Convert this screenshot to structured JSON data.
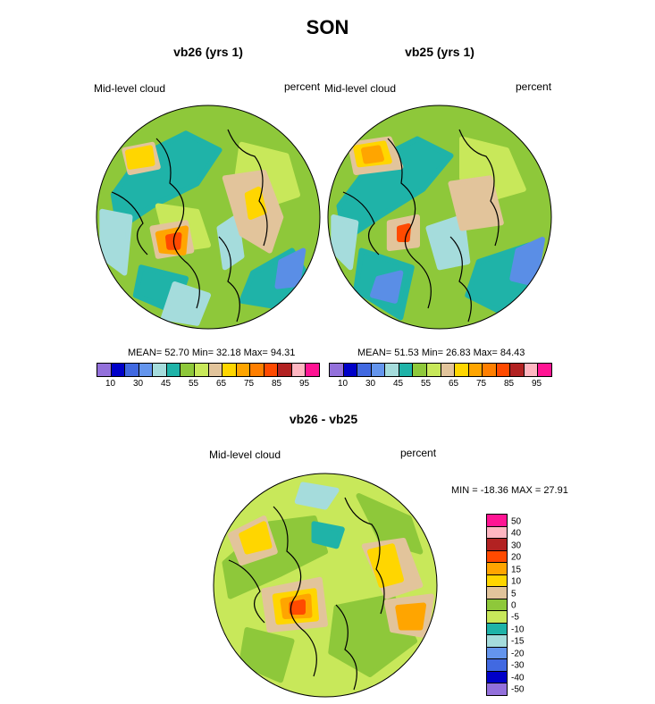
{
  "title": "SON",
  "panels": [
    {
      "subtitle": "vb26 (yrs 1)",
      "left_label": "Mid-level cloud",
      "right_label": "percent",
      "mean_text": "MEAN=  52.70  Min=  32.18  Max=  94.31",
      "base_color": "#8ec83a",
      "blobs": [
        {
          "c": "#1fb3a8",
          "pts": [
            [
              -0.85,
              -0.2
            ],
            [
              -0.6,
              -0.55
            ],
            [
              -0.2,
              -0.75
            ],
            [
              0.1,
              -0.6
            ],
            [
              -0.1,
              -0.3
            ],
            [
              -0.5,
              -0.1
            ],
            [
              -0.8,
              0.1
            ]
          ]
        },
        {
          "c": "#1fb3a8",
          "pts": [
            [
              0.4,
              0.5
            ],
            [
              0.75,
              0.3
            ],
            [
              0.9,
              0.55
            ],
            [
              0.6,
              0.8
            ],
            [
              0.3,
              0.75
            ]
          ]
        },
        {
          "c": "#1fb3a8",
          "pts": [
            [
              -0.6,
              0.45
            ],
            [
              -0.2,
              0.55
            ],
            [
              -0.3,
              0.85
            ],
            [
              -0.65,
              0.7
            ]
          ]
        },
        {
          "c": "#a5dcdc",
          "pts": [
            [
              -0.95,
              -0.05
            ],
            [
              -0.7,
              0.0
            ],
            [
              -0.75,
              0.5
            ],
            [
              -0.95,
              0.35
            ]
          ]
        },
        {
          "c": "#a5dcdc",
          "pts": [
            [
              -0.3,
              0.6
            ],
            [
              0.0,
              0.7
            ],
            [
              -0.1,
              0.95
            ],
            [
              -0.4,
              0.9
            ]
          ]
        },
        {
          "c": "#a5dcdc",
          "pts": [
            [
              0.1,
              0.1
            ],
            [
              0.25,
              0.0
            ],
            [
              0.3,
              0.35
            ],
            [
              0.15,
              0.45
            ]
          ]
        },
        {
          "c": "#5a8ee6",
          "pts": [
            [
              0.65,
              0.4
            ],
            [
              0.85,
              0.3
            ],
            [
              0.8,
              0.6
            ],
            [
              0.62,
              0.62
            ]
          ]
        },
        {
          "c": "#c8e85a",
          "pts": [
            [
              0.3,
              -0.65
            ],
            [
              0.7,
              -0.55
            ],
            [
              0.8,
              -0.2
            ],
            [
              0.5,
              -0.1
            ],
            [
              0.25,
              -0.3
            ]
          ]
        },
        {
          "c": "#c8e85a",
          "pts": [
            [
              -0.45,
              -0.1
            ],
            [
              -0.1,
              -0.05
            ],
            [
              0.0,
              0.25
            ],
            [
              -0.35,
              0.3
            ]
          ]
        },
        {
          "c": "#e2c49b",
          "pts": [
            [
              0.15,
              -0.35
            ],
            [
              0.5,
              -0.4
            ],
            [
              0.65,
              0.0
            ],
            [
              0.55,
              0.3
            ],
            [
              0.3,
              0.15
            ]
          ]
        },
        {
          "c": "#e2c49b",
          "pts": [
            [
              -0.75,
              -0.6
            ],
            [
              -0.5,
              -0.65
            ],
            [
              -0.45,
              -0.45
            ],
            [
              -0.7,
              -0.4
            ]
          ]
        },
        {
          "c": "#e2c49b",
          "pts": [
            [
              -0.5,
              0.1
            ],
            [
              -0.2,
              0.05
            ],
            [
              -0.15,
              0.3
            ],
            [
              -0.45,
              0.35
            ]
          ]
        },
        {
          "c": "#ffd600",
          "pts": [
            [
              -0.72,
              -0.58
            ],
            [
              -0.52,
              -0.62
            ],
            [
              -0.5,
              -0.48
            ],
            [
              -0.7,
              -0.45
            ]
          ]
        },
        {
          "c": "#ffd600",
          "pts": [
            [
              0.35,
              -0.2
            ],
            [
              0.45,
              -0.25
            ],
            [
              0.5,
              -0.05
            ],
            [
              0.38,
              0.0
            ]
          ]
        },
        {
          "c": "#ffa500",
          "pts": [
            [
              -0.45,
              0.15
            ],
            [
              -0.2,
              0.1
            ],
            [
              -0.22,
              0.32
            ],
            [
              -0.42,
              0.3
            ]
          ]
        },
        {
          "c": "#ff4a00",
          "pts": [
            [
              -0.36,
              0.18
            ],
            [
              -0.26,
              0.16
            ],
            [
              -0.27,
              0.27
            ],
            [
              -0.35,
              0.27
            ]
          ]
        }
      ]
    },
    {
      "subtitle": "vb25 (yrs 1)",
      "left_label": "Mid-level cloud",
      "right_label": "percent",
      "mean_text": "MEAN=  51.53  Min=  26.83  Max=  84.43",
      "base_color": "#8ec83a",
      "blobs": [
        {
          "c": "#1fb3a8",
          "pts": [
            [
              -0.9,
              -0.1
            ],
            [
              -0.6,
              -0.5
            ],
            [
              -0.2,
              -0.7
            ],
            [
              0.1,
              -0.55
            ],
            [
              -0.15,
              -0.25
            ],
            [
              -0.55,
              0.0
            ],
            [
              -0.85,
              0.2
            ]
          ]
        },
        {
          "c": "#1fb3a8",
          "pts": [
            [
              0.35,
              0.4
            ],
            [
              0.8,
              0.25
            ],
            [
              0.9,
              0.6
            ],
            [
              0.55,
              0.85
            ],
            [
              0.25,
              0.7
            ]
          ]
        },
        {
          "c": "#1fb3a8",
          "pts": [
            [
              -0.7,
              0.3
            ],
            [
              -0.25,
              0.45
            ],
            [
              -0.35,
              0.9
            ],
            [
              -0.75,
              0.65
            ]
          ]
        },
        {
          "c": "#a5dcdc",
          "pts": [
            [
              -0.95,
              0.0
            ],
            [
              -0.75,
              0.05
            ],
            [
              -0.8,
              0.45
            ],
            [
              -0.95,
              0.3
            ]
          ]
        },
        {
          "c": "#a5dcdc",
          "pts": [
            [
              -0.1,
              0.1
            ],
            [
              0.2,
              0.0
            ],
            [
              0.25,
              0.4
            ],
            [
              0.0,
              0.45
            ]
          ]
        },
        {
          "c": "#5a8ee6",
          "pts": [
            [
              0.7,
              0.3
            ],
            [
              0.92,
              0.2
            ],
            [
              0.85,
              0.6
            ],
            [
              0.65,
              0.55
            ]
          ]
        },
        {
          "c": "#5a8ee6",
          "pts": [
            [
              -0.55,
              0.55
            ],
            [
              -0.35,
              0.5
            ],
            [
              -0.4,
              0.75
            ],
            [
              -0.6,
              0.7
            ]
          ]
        },
        {
          "c": "#c8e85a",
          "pts": [
            [
              0.2,
              -0.7
            ],
            [
              0.6,
              -0.6
            ],
            [
              0.75,
              -0.25
            ],
            [
              0.4,
              -0.15
            ],
            [
              0.2,
              -0.35
            ]
          ]
        },
        {
          "c": "#e2c49b",
          "pts": [
            [
              -0.8,
              -0.65
            ],
            [
              -0.45,
              -0.7
            ],
            [
              -0.35,
              -0.45
            ],
            [
              -0.75,
              -0.4
            ]
          ]
        },
        {
          "c": "#e2c49b",
          "pts": [
            [
              0.1,
              -0.3
            ],
            [
              0.45,
              -0.35
            ],
            [
              0.55,
              0.05
            ],
            [
              0.2,
              0.1
            ]
          ]
        },
        {
          "c": "#e2c49b",
          "pts": [
            [
              -0.45,
              0.05
            ],
            [
              -0.2,
              0.0
            ],
            [
              -0.2,
              0.25
            ],
            [
              -0.45,
              0.28
            ]
          ]
        },
        {
          "c": "#ffd600",
          "pts": [
            [
              -0.75,
              -0.62
            ],
            [
              -0.5,
              -0.66
            ],
            [
              -0.45,
              -0.5
            ],
            [
              -0.72,
              -0.47
            ]
          ]
        },
        {
          "c": "#ffa500",
          "pts": [
            [
              -0.68,
              -0.6
            ],
            [
              -0.55,
              -0.62
            ],
            [
              -0.52,
              -0.52
            ],
            [
              -0.66,
              -0.5
            ]
          ]
        },
        {
          "c": "#ff4a00",
          "pts": [
            [
              -0.36,
              0.1
            ],
            [
              -0.28,
              0.08
            ],
            [
              -0.29,
              0.2
            ],
            [
              -0.36,
              0.2
            ]
          ]
        }
      ]
    },
    {
      "subtitle": "vb26 - vb25",
      "left_label": "Mid-level cloud",
      "right_label": "percent",
      "minmax_text": "MIN = -18.36 MAX =  27.91",
      "base_color": "#c8e85a",
      "blobs": [
        {
          "c": "#8ec83a",
          "pts": [
            [
              -0.9,
              -0.2
            ],
            [
              -0.5,
              -0.55
            ],
            [
              -0.1,
              -0.6
            ],
            [
              0.0,
              -0.3
            ],
            [
              -0.4,
              -0.1
            ],
            [
              -0.85,
              0.1
            ]
          ]
        },
        {
          "c": "#8ec83a",
          "pts": [
            [
              0.1,
              0.2
            ],
            [
              0.6,
              0.1
            ],
            [
              0.8,
              0.5
            ],
            [
              0.4,
              0.8
            ],
            [
              0.05,
              0.6
            ]
          ]
        },
        {
          "c": "#8ec83a",
          "pts": [
            [
              0.3,
              -0.8
            ],
            [
              0.75,
              -0.6
            ],
            [
              0.85,
              -0.3
            ],
            [
              0.5,
              -0.4
            ]
          ]
        },
        {
          "c": "#8ec83a",
          "pts": [
            [
              -0.7,
              0.4
            ],
            [
              -0.3,
              0.5
            ],
            [
              -0.4,
              0.85
            ],
            [
              -0.75,
              0.7
            ]
          ]
        },
        {
          "c": "#e2c49b",
          "pts": [
            [
              -0.85,
              -0.45
            ],
            [
              -0.55,
              -0.6
            ],
            [
              -0.45,
              -0.3
            ],
            [
              -0.75,
              -0.2
            ]
          ]
        },
        {
          "c": "#e2c49b",
          "pts": [
            [
              0.35,
              -0.35
            ],
            [
              0.7,
              -0.4
            ],
            [
              0.85,
              0.0
            ],
            [
              0.55,
              0.1
            ]
          ]
        },
        {
          "c": "#e2c49b",
          "pts": [
            [
              -0.55,
              0.05
            ],
            [
              -0.05,
              -0.05
            ],
            [
              0.0,
              0.35
            ],
            [
              -0.5,
              0.4
            ]
          ]
        },
        {
          "c": "#e2c49b",
          "pts": [
            [
              0.55,
              0.15
            ],
            [
              0.95,
              0.1
            ],
            [
              0.9,
              0.45
            ],
            [
              0.6,
              0.4
            ]
          ]
        },
        {
          "c": "#ffd600",
          "pts": [
            [
              -0.75,
              -0.45
            ],
            [
              -0.55,
              -0.55
            ],
            [
              -0.5,
              -0.35
            ],
            [
              -0.7,
              -0.3
            ]
          ]
        },
        {
          "c": "#ffd600",
          "pts": [
            [
              0.4,
              -0.3
            ],
            [
              0.6,
              -0.35
            ],
            [
              0.68,
              -0.05
            ],
            [
              0.5,
              0.0
            ]
          ]
        },
        {
          "c": "#ffd600",
          "pts": [
            [
              -0.45,
              0.1
            ],
            [
              -0.1,
              0.05
            ],
            [
              -0.08,
              0.3
            ],
            [
              -0.42,
              0.33
            ]
          ]
        },
        {
          "c": "#ffa500",
          "pts": [
            [
              -0.38,
              0.14
            ],
            [
              -0.15,
              0.1
            ],
            [
              -0.14,
              0.27
            ],
            [
              -0.36,
              0.28
            ]
          ]
        },
        {
          "c": "#ffa500",
          "pts": [
            [
              0.65,
              0.2
            ],
            [
              0.88,
              0.18
            ],
            [
              0.85,
              0.38
            ],
            [
              0.68,
              0.38
            ]
          ]
        },
        {
          "c": "#ff4a00",
          "pts": [
            [
              -0.3,
              0.17
            ],
            [
              -0.2,
              0.15
            ],
            [
              -0.2,
              0.24
            ],
            [
              -0.3,
              0.24
            ]
          ]
        },
        {
          "c": "#a5dcdc",
          "pts": [
            [
              -0.2,
              -0.9
            ],
            [
              0.1,
              -0.85
            ],
            [
              0.0,
              -0.7
            ],
            [
              -0.25,
              -0.75
            ]
          ]
        },
        {
          "c": "#1fb3a8",
          "pts": [
            [
              -0.1,
              -0.55
            ],
            [
              0.15,
              -0.5
            ],
            [
              0.1,
              -0.35
            ],
            [
              -0.1,
              -0.4
            ]
          ]
        }
      ]
    }
  ],
  "colorbar_abs": {
    "colors": [
      "#9370db",
      "#0000c8",
      "#4169e1",
      "#6495ed",
      "#a5dcdc",
      "#1fb3a8",
      "#8ec83a",
      "#c8e85a",
      "#e2c49b",
      "#ffd600",
      "#ffa500",
      "#ff7f00",
      "#ff4a00",
      "#b22222",
      "#ffb6c1",
      "#ff1493"
    ],
    "tick_labels": [
      "10",
      "30",
      "45",
      "55",
      "65",
      "75",
      "85",
      "95"
    ]
  },
  "colorbar_diff": {
    "colors": [
      "#ff1493",
      "#ffb6c1",
      "#b22222",
      "#ff4a00",
      "#ffa500",
      "#ffd600",
      "#e2c49b",
      "#8ec83a",
      "#c8e85a",
      "#1fb3a8",
      "#a5dcdc",
      "#6495ed",
      "#4169e1",
      "#0000c8",
      "#9370db"
    ],
    "tick_labels": [
      "50",
      "40",
      "30",
      "20",
      "15",
      "10",
      "5",
      "0",
      "-5",
      "-10",
      "-15",
      "-20",
      "-30",
      "-40",
      "-50"
    ]
  }
}
